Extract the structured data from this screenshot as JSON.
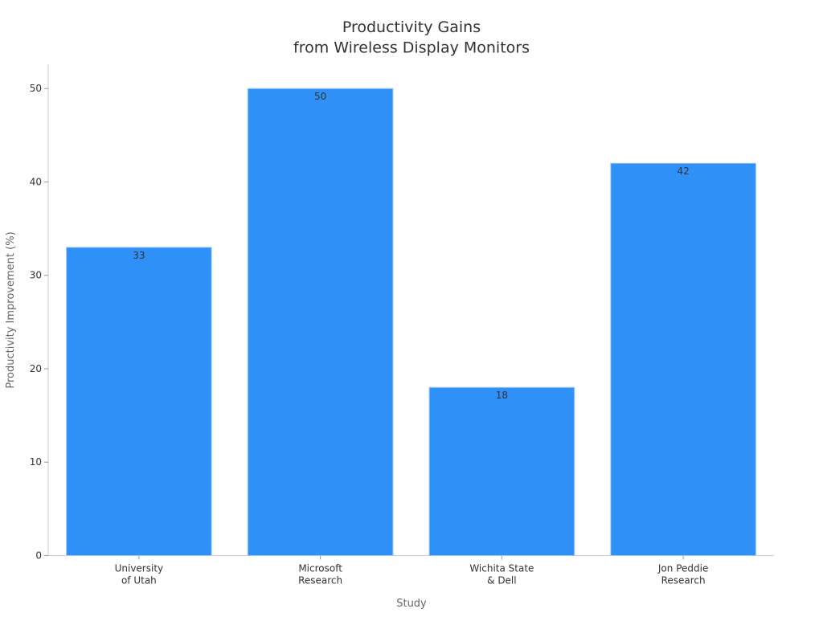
{
  "chart_data": {
    "type": "bar",
    "title": "Productivity Gains\nfrom Wireless Display Monitors",
    "x_label": "Study",
    "y_label": "Productivity Improvement (%)",
    "categories": [
      "University\nof Utah",
      "Microsoft\nResearch",
      "Wichita State\n& Dell",
      "Jon Peddie\nResearch"
    ],
    "values": [
      33,
      50,
      18,
      42
    ],
    "color": "#2f91f8",
    "ylim": [
      0,
      52.6
    ],
    "yticks": [
      0,
      10,
      20,
      30,
      40,
      50
    ],
    "grid": false
  }
}
